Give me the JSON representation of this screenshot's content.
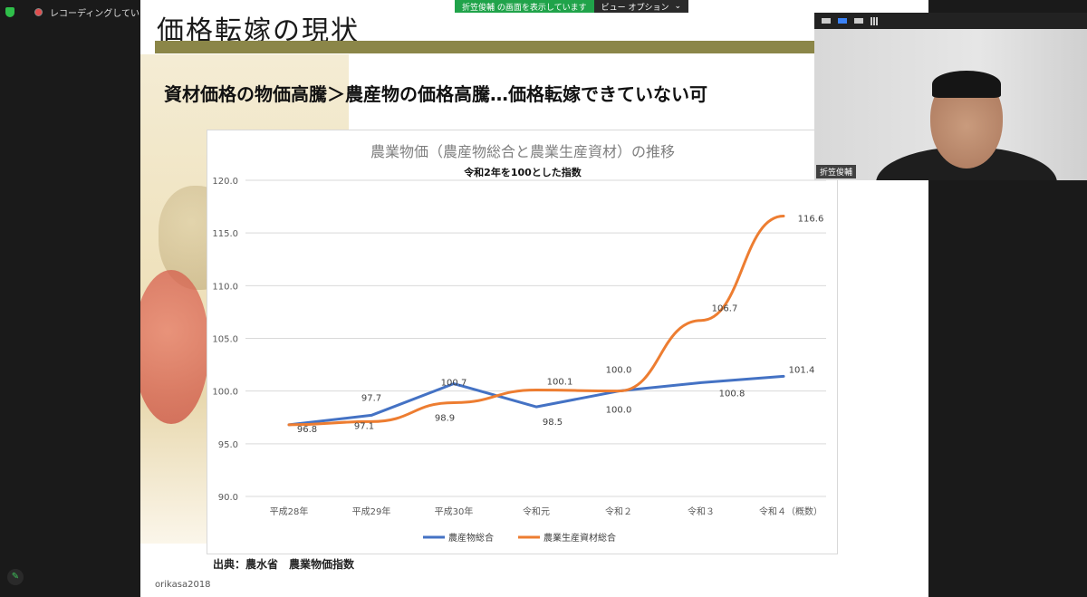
{
  "status": {
    "recording_label": "レコーディングしています..."
  },
  "share_bar": {
    "sharing_text": "折笠俊輔 の画面を表示しています",
    "view_options_label": "ビュー オプション",
    "chevron": "⌄"
  },
  "slide": {
    "title": "価格転嫁の現状",
    "headline": "資材価格の物価高騰＞農産物の価格高騰…価格転嫁できていない可",
    "source": "出典：農水省　農業物価指数",
    "watermark": "orikasa2018"
  },
  "chart_data": {
    "type": "line",
    "title": "農業物価（農産物総合と農業生産資材）の推移",
    "subtitle": "令和2年を100とした指数",
    "categories": [
      "平成28年",
      "平成29年",
      "平成30年",
      "令和元",
      "令和２",
      "令和３",
      "令和４（概数）"
    ],
    "ylim": [
      90.0,
      120.0
    ],
    "yticks": [
      "90.0",
      "95.0",
      "100.0",
      "105.0",
      "110.0",
      "115.0",
      "120.0"
    ],
    "grid": true,
    "legend_position": "bottom",
    "series": [
      {
        "name": "農産物総合",
        "color": "#4472c4",
        "values": [
          96.8,
          97.7,
          100.7,
          98.5,
          100.0,
          100.8,
          101.4
        ],
        "labels": [
          "",
          "97.7",
          "100.7",
          "98.5",
          "100.0",
          "100.8",
          "101.4"
        ]
      },
      {
        "name": "農業生産資材総合",
        "color": "#ed7d31",
        "values": [
          96.8,
          97.1,
          98.9,
          100.1,
          100.0,
          106.7,
          116.6
        ],
        "labels": [
          "96.8",
          "97.1",
          "98.9",
          "100.1",
          "100.0",
          "106.7",
          "116.6"
        ]
      }
    ]
  },
  "webcam": {
    "name_label": "折笠俊輔"
  },
  "icons": {
    "shield": "shield-icon",
    "pause": "pause-icon",
    "pencil": "pencil-icon"
  }
}
